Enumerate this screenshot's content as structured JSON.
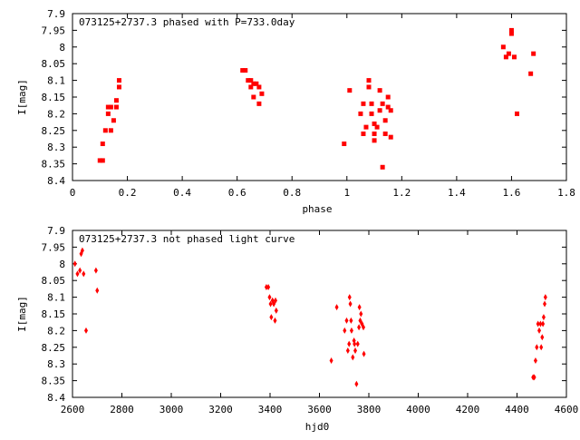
{
  "chart_data": [
    {
      "type": "scatter",
      "title": "073125+2737.3 phased with P=733.0day",
      "xlabel": "phase",
      "ylabel": "I[mag]",
      "xlim": [
        0,
        1.8
      ],
      "ylim": [
        8.4,
        7.9
      ],
      "y_inverted": true,
      "xticks": [
        "0",
        "0.2",
        "0.4",
        "0.6",
        "0.8",
        "1",
        "1.2",
        "1.4",
        "1.6",
        "1.8"
      ],
      "yticks": [
        "7.9",
        "7.95",
        "8",
        "8.05",
        "8.1",
        "8.15",
        "8.2",
        "8.25",
        "8.3",
        "8.35",
        "8.4"
      ],
      "marker": "filled-square",
      "color": "#ff0000",
      "points": [
        [
          0.1,
          8.34
        ],
        [
          0.11,
          8.34
        ],
        [
          0.11,
          8.29
        ],
        [
          0.12,
          8.25
        ],
        [
          0.13,
          8.18
        ],
        [
          0.13,
          8.2
        ],
        [
          0.14,
          8.18
        ],
        [
          0.14,
          8.25
        ],
        [
          0.15,
          8.22
        ],
        [
          0.16,
          8.18
        ],
        [
          0.16,
          8.16
        ],
        [
          0.17,
          8.12
        ],
        [
          0.17,
          8.1
        ],
        [
          0.62,
          8.07
        ],
        [
          0.63,
          8.07
        ],
        [
          0.64,
          8.1
        ],
        [
          0.65,
          8.12
        ],
        [
          0.65,
          8.1
        ],
        [
          0.66,
          8.11
        ],
        [
          0.66,
          8.15
        ],
        [
          0.67,
          8.11
        ],
        [
          0.68,
          8.12
        ],
        [
          0.68,
          8.17
        ],
        [
          0.69,
          8.14
        ],
        [
          0.99,
          8.29
        ],
        [
          1.01,
          8.13
        ],
        [
          1.05,
          8.2
        ],
        [
          1.06,
          8.26
        ],
        [
          1.06,
          8.17
        ],
        [
          1.07,
          8.24
        ],
        [
          1.08,
          8.1
        ],
        [
          1.08,
          8.12
        ],
        [
          1.09,
          8.17
        ],
        [
          1.09,
          8.2
        ],
        [
          1.1,
          8.23
        ],
        [
          1.1,
          8.26
        ],
        [
          1.1,
          8.28
        ],
        [
          1.11,
          8.24
        ],
        [
          1.12,
          8.13
        ],
        [
          1.12,
          8.19
        ],
        [
          1.13,
          8.17
        ],
        [
          1.13,
          8.36
        ],
        [
          1.14,
          8.22
        ],
        [
          1.14,
          8.26
        ],
        [
          1.15,
          8.15
        ],
        [
          1.15,
          8.18
        ],
        [
          1.16,
          8.19
        ],
        [
          1.16,
          8.27
        ],
        [
          1.57,
          8.0
        ],
        [
          1.58,
          8.03
        ],
        [
          1.59,
          8.02
        ],
        [
          1.6,
          7.95
        ],
        [
          1.6,
          7.96
        ],
        [
          1.61,
          8.03
        ],
        [
          1.62,
          8.2
        ],
        [
          1.67,
          8.08
        ],
        [
          1.68,
          8.02
        ]
      ]
    },
    {
      "type": "scatter",
      "title": "073125+2737.3 not phased light curve",
      "xlabel": "hjd0",
      "ylabel": "I[mag]",
      "xlim": [
        2600,
        4600
      ],
      "ylim": [
        8.4,
        7.9
      ],
      "y_inverted": true,
      "xticks": [
        "2600",
        "2800",
        "3000",
        "3200",
        "3400",
        "3600",
        "3800",
        "4000",
        "4200",
        "4400",
        "4600"
      ],
      "yticks": [
        "7.9",
        "7.95",
        "8",
        "8.05",
        "8.1",
        "8.15",
        "8.2",
        "8.25",
        "8.3",
        "8.35",
        "8.4"
      ],
      "marker": "diamond",
      "color": "#ff0000",
      "points": [
        [
          2610,
          8.0
        ],
        [
          2620,
          8.03
        ],
        [
          2630,
          8.02
        ],
        [
          2635,
          7.97
        ],
        [
          2640,
          7.96
        ],
        [
          2645,
          8.03
        ],
        [
          2655,
          8.2
        ],
        [
          2695,
          8.02
        ],
        [
          2700,
          8.08
        ],
        [
          3385,
          8.07
        ],
        [
          3393,
          8.07
        ],
        [
          3398,
          8.1
        ],
        [
          3402,
          8.12
        ],
        [
          3405,
          8.16
        ],
        [
          3410,
          8.11
        ],
        [
          3415,
          8.12
        ],
        [
          3420,
          8.17
        ],
        [
          3425,
          8.14
        ],
        [
          3422,
          8.11
        ],
        [
          3648,
          8.29
        ],
        [
          3670,
          8.13
        ],
        [
          3702,
          8.2
        ],
        [
          3710,
          8.17
        ],
        [
          3715,
          8.26
        ],
        [
          3720,
          8.24
        ],
        [
          3722,
          8.1
        ],
        [
          3725,
          8.12
        ],
        [
          3728,
          8.17
        ],
        [
          3730,
          8.2
        ],
        [
          3735,
          8.28
        ],
        [
          3740,
          8.23
        ],
        [
          3745,
          8.26
        ],
        [
          3750,
          8.36
        ],
        [
          3755,
          8.24
        ],
        [
          3760,
          8.19
        ],
        [
          3762,
          8.13
        ],
        [
          3765,
          8.17
        ],
        [
          3768,
          8.15
        ],
        [
          3772,
          8.18
        ],
        [
          3780,
          8.27
        ],
        [
          3778,
          8.19
        ],
        [
          3742,
          8.24
        ],
        [
          4465,
          8.34
        ],
        [
          4470,
          8.34
        ],
        [
          4475,
          8.29
        ],
        [
          4480,
          8.25
        ],
        [
          4485,
          8.18
        ],
        [
          4490,
          8.2
        ],
        [
          4495,
          8.18
        ],
        [
          4498,
          8.25
        ],
        [
          4502,
          8.22
        ],
        [
          4505,
          8.18
        ],
        [
          4508,
          8.16
        ],
        [
          4512,
          8.12
        ],
        [
          4515,
          8.1
        ]
      ]
    }
  ]
}
